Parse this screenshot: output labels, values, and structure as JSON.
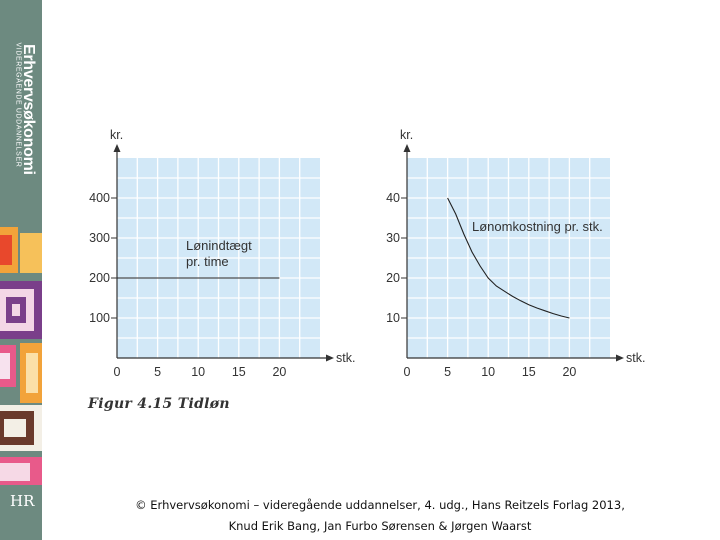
{
  "sidebar": {
    "brand_title": "Erhvervsøkonomi",
    "brand_subtitle": "VIDEREGÅENDE UDDANNELSER",
    "publisher_logo": "HR"
  },
  "figure_caption": "Figur 4.15 Tidløn",
  "footer": {
    "line1": "© Erhvervsøkonomi – videregående uddannelser, 4. udg., Hans Reitzels Forlag 2013,",
    "line2": "Knud Erik Bang, Jan Furbo Sørensen & Jørgen Waarst"
  },
  "colors": {
    "plot_bg": "#d2e8f7",
    "grid": "#ffffff",
    "line": "#222222",
    "sidebar": "#6d8a80"
  },
  "chart_data": [
    {
      "type": "line",
      "ylabel": "kr.",
      "xlabel": "stk.",
      "xlim": [
        0,
        25
      ],
      "ylim": [
        0,
        500
      ],
      "xticks": [
        0,
        5,
        10,
        15,
        20
      ],
      "yticks": [
        100,
        200,
        300,
        400
      ],
      "xtick_labels": [
        "0",
        "5",
        "10",
        "15",
        "20"
      ],
      "ytick_labels": [
        "100",
        "200",
        "300",
        "400"
      ],
      "annotation": [
        "Lønindtægt",
        "pr. time"
      ],
      "grid": true,
      "series": [
        {
          "x": [
            0,
            20
          ],
          "y": [
            200,
            200
          ]
        }
      ]
    },
    {
      "type": "line",
      "ylabel": "kr.",
      "xlabel": "stk.",
      "xlim": [
        0,
        25
      ],
      "ylim": [
        0,
        50
      ],
      "xticks": [
        0,
        5,
        10,
        15,
        20
      ],
      "yticks": [
        10,
        20,
        30,
        40
      ],
      "xtick_labels": [
        "0",
        "5",
        "10",
        "15",
        "20"
      ],
      "ytick_labels": [
        "10",
        "20",
        "30",
        "40"
      ],
      "annotation": [
        "Lønomkostning pr. stk."
      ],
      "grid": true,
      "series": [
        {
          "x": [
            5,
            6,
            7,
            8,
            9,
            10,
            11,
            12,
            13,
            14,
            15,
            16,
            17,
            18,
            19,
            20
          ],
          "y": [
            40,
            36,
            31,
            26.5,
            23,
            20,
            18,
            16.7,
            15.4,
            14.3,
            13.3,
            12.5,
            11.8,
            11.1,
            10.5,
            10
          ]
        }
      ]
    }
  ]
}
